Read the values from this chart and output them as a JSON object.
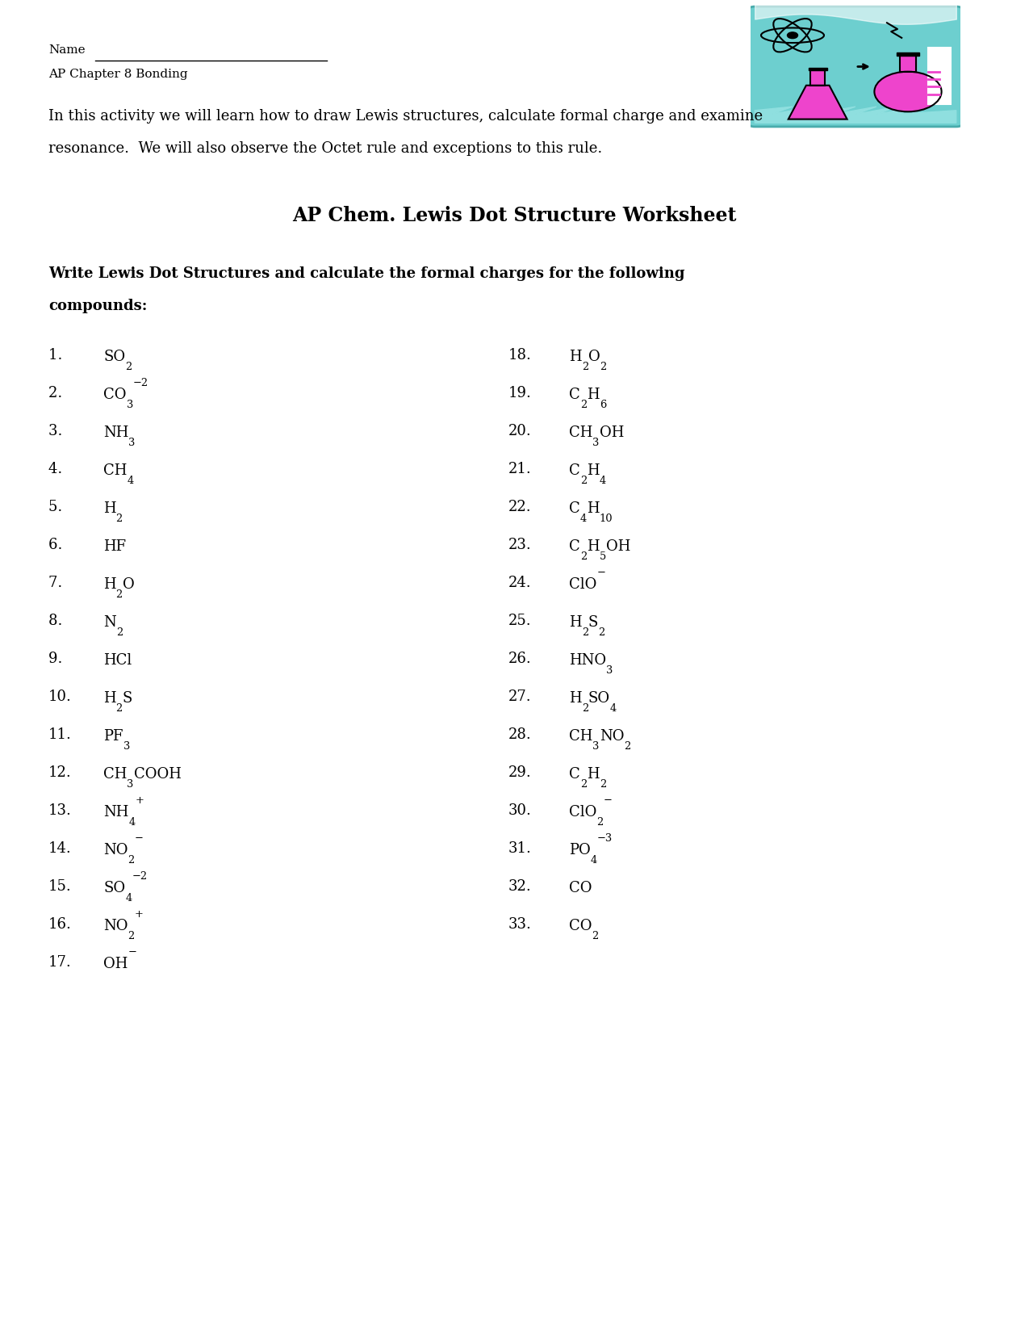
{
  "title": "AP Chem. Lewis Dot Structure Worksheet",
  "header_name": "Name",
  "header_subtitle": "AP Chapter 8 Bonding",
  "intro_line1": "In this activity we will learn how to draw Lewis structures, calculate formal charge and examine",
  "intro_line2": "resonance.  We will also observe the Octet rule and exceptions to this rule.",
  "bold_instruction_line1": "Write Lewis Dot Structures and calculate the formal charges for the following",
  "bold_instruction_line2": "compounds:",
  "left_items": [
    {
      "num": "1.  ",
      "parts": [
        {
          "t": "SO",
          "sub": "2",
          "sup": ""
        }
      ]
    },
    {
      "num": "2.  ",
      "parts": [
        {
          "t": "CO",
          "sub": "3",
          "sup": "−2"
        }
      ]
    },
    {
      "num": "3.  ",
      "parts": [
        {
          "t": "NH",
          "sub": "3",
          "sup": ""
        }
      ]
    },
    {
      "num": "4.  ",
      "parts": [
        {
          "t": "CH",
          "sub": "4",
          "sup": ""
        }
      ]
    },
    {
      "num": "5.  ",
      "parts": [
        {
          "t": "H",
          "sub": "2",
          "sup": ""
        }
      ]
    },
    {
      "num": "6.  ",
      "parts": [
        {
          "t": "HF",
          "sub": "",
          "sup": ""
        }
      ]
    },
    {
      "num": "7.  ",
      "parts": [
        {
          "t": "H",
          "sub": "2",
          "sup": ""
        },
        {
          "t": "O",
          "sub": "",
          "sup": ""
        }
      ]
    },
    {
      "num": "8.  ",
      "parts": [
        {
          "t": "N",
          "sub": "2",
          "sup": ""
        }
      ]
    },
    {
      "num": "9.  ",
      "parts": [
        {
          "t": "HCl",
          "sub": "",
          "sup": ""
        }
      ]
    },
    {
      "num": "10.",
      "parts": [
        {
          "t": "H",
          "sub": "2",
          "sup": ""
        },
        {
          "t": "S",
          "sub": "",
          "sup": ""
        }
      ]
    },
    {
      "num": "11.",
      "parts": [
        {
          "t": "PF",
          "sub": "3",
          "sup": ""
        }
      ]
    },
    {
      "num": "12.",
      "parts": [
        {
          "t": "CH",
          "sub": "3",
          "sup": ""
        },
        {
          "t": "COOH",
          "sub": "",
          "sup": ""
        }
      ]
    },
    {
      "num": "13.",
      "parts": [
        {
          "t": "NH",
          "sub": "4",
          "sup": "+"
        }
      ]
    },
    {
      "num": "14.",
      "parts": [
        {
          "t": "NO",
          "sub": "2",
          "sup": "−"
        }
      ]
    },
    {
      "num": "15.",
      "parts": [
        {
          "t": "SO",
          "sub": "4",
          "sup": "−2"
        }
      ]
    },
    {
      "num": "16.",
      "parts": [
        {
          "t": "NO",
          "sub": "2",
          "sup": "+"
        }
      ]
    },
    {
      "num": "17.",
      "parts": [
        {
          "t": "OH",
          "sub": "",
          "sup": "−"
        }
      ]
    }
  ],
  "right_items": [
    {
      "num": "18.",
      "parts": [
        {
          "t": "H",
          "sub": "2",
          "sup": ""
        },
        {
          "t": "O",
          "sub": "2",
          "sup": ""
        }
      ]
    },
    {
      "num": "19.",
      "parts": [
        {
          "t": "C",
          "sub": "2",
          "sup": ""
        },
        {
          "t": "H",
          "sub": "6",
          "sup": ""
        }
      ]
    },
    {
      "num": "20.",
      "parts": [
        {
          "t": "CH",
          "sub": "3",
          "sup": ""
        },
        {
          "t": "OH",
          "sub": "",
          "sup": ""
        }
      ]
    },
    {
      "num": "21.",
      "parts": [
        {
          "t": "C",
          "sub": "2",
          "sup": ""
        },
        {
          "t": "H",
          "sub": "4",
          "sup": ""
        }
      ]
    },
    {
      "num": "22.",
      "parts": [
        {
          "t": "C",
          "sub": "4",
          "sup": ""
        },
        {
          "t": "H",
          "sub": "10",
          "sup": ""
        }
      ]
    },
    {
      "num": "23.",
      "parts": [
        {
          "t": "C",
          "sub": "2",
          "sup": ""
        },
        {
          "t": "H",
          "sub": "5",
          "sup": ""
        },
        {
          "t": "OH",
          "sub": "",
          "sup": ""
        }
      ]
    },
    {
      "num": "24.",
      "parts": [
        {
          "t": "ClO",
          "sub": "",
          "sup": "−"
        }
      ]
    },
    {
      "num": "25.",
      "parts": [
        {
          "t": "H",
          "sub": "2",
          "sup": ""
        },
        {
          "t": "S",
          "sub": "2",
          "sup": ""
        }
      ]
    },
    {
      "num": "26.",
      "parts": [
        {
          "t": "HNO",
          "sub": "3",
          "sup": ""
        }
      ]
    },
    {
      "num": "27.",
      "parts": [
        {
          "t": "H",
          "sub": "2",
          "sup": ""
        },
        {
          "t": "SO",
          "sub": "4",
          "sup": ""
        }
      ]
    },
    {
      "num": "28.",
      "parts": [
        {
          "t": "CH",
          "sub": "3",
          "sup": ""
        },
        {
          "t": "NO",
          "sub": "2",
          "sup": ""
        }
      ]
    },
    {
      "num": "29.",
      "parts": [
        {
          "t": "C",
          "sub": "2",
          "sup": ""
        },
        {
          "t": "H",
          "sub": "2",
          "sup": ""
        }
      ]
    },
    {
      "num": "30.",
      "parts": [
        {
          "t": "ClO",
          "sub": "2",
          "sup": "−"
        }
      ]
    },
    {
      "num": "31.",
      "parts": [
        {
          "t": "PO",
          "sub": "4",
          "sup": "−3"
        }
      ]
    },
    {
      "num": "32.",
      "parts": [
        {
          "t": "CO",
          "sub": "",
          "sup": ""
        }
      ]
    },
    {
      "num": "33.",
      "parts": [
        {
          "t": "CO",
          "sub": "2",
          "sup": ""
        }
      ]
    }
  ],
  "bg_color": "#ffffff"
}
